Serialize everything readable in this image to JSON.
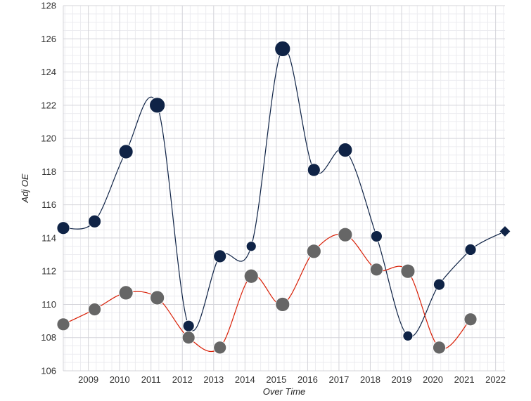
{
  "chart_data": {
    "type": "line",
    "xlabel": "Over Time",
    "ylabel": "Adj OE",
    "ylim": [
      106,
      128
    ],
    "xlim": [
      2008.2,
      2022.3
    ],
    "y_ticks": [
      106,
      108,
      110,
      112,
      114,
      116,
      118,
      120,
      122,
      124,
      126,
      128
    ],
    "x_ticks": [
      2009,
      2010,
      2011,
      2012,
      2013,
      2014,
      2015,
      2016,
      2017,
      2018,
      2019,
      2020,
      2021,
      2022
    ],
    "grid": true,
    "series": [
      {
        "color": "#0f2346",
        "marker": "circle",
        "x": [
          2008.2,
          2009.2,
          2010.2,
          2011.2,
          2012.2,
          2013.2,
          2014.2,
          2015.2,
          2016.2,
          2017.2,
          2018.2,
          2019.2,
          2020.2,
          2021.2
        ],
        "values": [
          114.6,
          115.0,
          119.2,
          122.0,
          108.7,
          112.9,
          113.5,
          125.4,
          118.1,
          119.3,
          114.1,
          108.1,
          111.2,
          113.3
        ],
        "sizes": [
          9,
          9,
          10,
          11,
          8,
          9,
          7,
          11,
          9,
          10,
          8,
          7,
          8,
          8
        ]
      },
      {
        "color": "#0f2346",
        "marker": "diamond",
        "x": [
          2022.3
        ],
        "values": [
          114.4
        ],
        "sizes": [
          8
        ],
        "connect_from_previous_series": true
      },
      {
        "color": "#d81e05",
        "marker": "circle",
        "marker_color": "#666666",
        "x": [
          2008.2,
          2009.2,
          2010.2,
          2011.2,
          2012.2,
          2013.2,
          2014.2,
          2015.2,
          2016.2,
          2017.2,
          2018.2,
          2019.2,
          2020.2,
          2021.2
        ],
        "values": [
          108.8,
          109.7,
          110.7,
          110.4,
          108.0,
          107.4,
          111.7,
          110.0,
          113.2,
          114.2,
          112.1,
          112.0,
          107.4,
          109.1
        ],
        "sizes": [
          9,
          9,
          10,
          10,
          9,
          9,
          10,
          10,
          10,
          10,
          9,
          10,
          9,
          9
        ]
      }
    ]
  }
}
